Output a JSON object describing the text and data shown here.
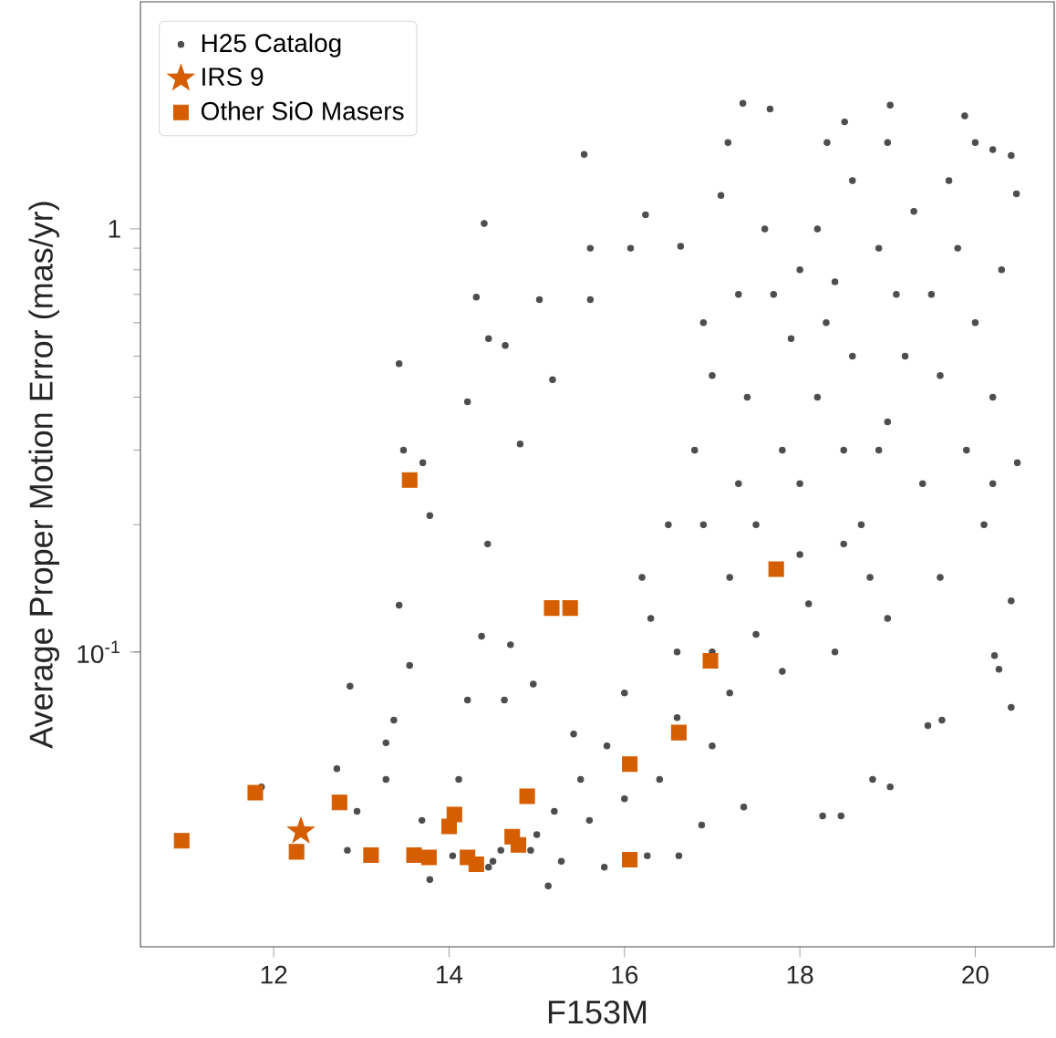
{
  "chart_data": {
    "type": "scatter",
    "xlabel": "F153M",
    "ylabel": "Average Proper Motion Error (mas/yr)",
    "log": "y",
    "grid": false,
    "legend": "top left",
    "xlim": [
      10.48,
      20.9
    ],
    "ylim": [
      0.0201,
      3.44
    ],
    "xticks": [
      12,
      14,
      16,
      18,
      20
    ],
    "yticks": [
      {
        "value": 0.1,
        "label": "10$^{-1}$"
      },
      {
        "value": 1,
        "label": "1"
      }
    ],
    "series": [
      {
        "name": "H25 Catalog",
        "color": "#4d4d4d",
        "marker": "circle",
        "x": [
          17.35,
          17.66,
          19.03,
          19.88,
          18.51,
          17.18,
          18.31,
          19.0,
          15.54,
          14.4,
          16.24,
          15.61,
          16.07,
          16.64,
          14.31,
          15.03,
          15.61,
          13.43,
          14.45,
          14.64,
          14.21,
          15.18,
          14.81,
          13.48,
          13.7,
          13.78,
          14.44,
          13.43,
          13.55,
          12.87,
          13.37,
          13.28,
          12.72,
          13.28,
          12.84,
          12.95,
          11.86,
          13.78,
          15.13,
          14.37,
          14.7,
          14.21,
          14.63,
          14.96,
          15.42,
          15.77,
          15.28,
          14.59,
          14.04,
          13.69,
          14.11,
          16.26,
          16.62,
          16.88,
          17.36,
          18.26,
          18.47,
          19.03,
          18.83,
          19.46,
          19.62,
          20.41,
          20.22,
          20.27,
          20.41,
          20.48,
          20.47,
          20.41,
          20.2,
          17.0,
          17.2,
          17.5,
          17.8,
          18.0,
          18.2,
          18.5,
          18.7,
          19.0,
          19.2,
          19.5,
          19.8,
          20.0,
          20.2,
          20.3,
          18.3,
          18.0,
          17.6,
          17.3,
          17.0,
          16.8,
          16.5,
          16.3,
          16.0,
          15.8,
          15.5,
          15.2,
          15.0,
          14.93,
          14.5,
          14.45,
          16.6,
          17.2,
          17.8,
          18.4,
          19.0,
          19.6,
          20.1,
          18.8,
          18.1,
          17.5,
          17.0,
          16.4,
          16.0,
          15.6,
          18.6,
          19.3,
          19.7,
          18.9,
          18.4,
          17.9,
          17.4,
          16.9,
          16.2,
          19.4,
          19.9,
          20.2,
          18.6,
          19.1,
          17.7,
          18.2,
          17.1,
          16.9,
          20.0,
          19.6,
          18.9,
          18.5,
          18.0,
          17.3,
          16.6
        ],
        "values": [
          1.98,
          1.92,
          1.96,
          1.85,
          1.79,
          1.6,
          1.6,
          1.6,
          1.5,
          1.03,
          1.08,
          0.9,
          0.9,
          0.91,
          0.69,
          0.68,
          0.68,
          0.48,
          0.55,
          0.53,
          0.39,
          0.44,
          0.31,
          0.3,
          0.28,
          0.21,
          0.18,
          0.129,
          0.093,
          0.083,
          0.069,
          0.061,
          0.053,
          0.05,
          0.034,
          0.042,
          0.048,
          0.029,
          0.028,
          0.109,
          0.104,
          0.077,
          0.077,
          0.084,
          0.064,
          0.031,
          0.032,
          0.034,
          0.033,
          0.04,
          0.05,
          0.033,
          0.033,
          0.039,
          0.043,
          0.041,
          0.041,
          0.048,
          0.05,
          0.067,
          0.069,
          0.074,
          0.098,
          0.091,
          0.132,
          0.28,
          1.21,
          1.49,
          1.54,
          0.1,
          0.15,
          0.2,
          0.3,
          0.25,
          0.4,
          0.3,
          0.2,
          0.35,
          0.5,
          0.7,
          0.9,
          0.6,
          0.4,
          0.8,
          0.6,
          0.8,
          1.0,
          0.7,
          0.45,
          0.3,
          0.2,
          0.12,
          0.08,
          0.06,
          0.05,
          0.042,
          0.037,
          0.034,
          0.032,
          0.031,
          0.07,
          0.08,
          0.09,
          0.1,
          0.12,
          0.15,
          0.2,
          0.15,
          0.13,
          0.11,
          0.06,
          0.05,
          0.045,
          0.04,
          1.3,
          1.1,
          1.3,
          0.9,
          0.75,
          0.55,
          0.4,
          0.2,
          0.15,
          0.25,
          0.3,
          0.25,
          0.5,
          0.7,
          0.7,
          1.0,
          1.2,
          0.6,
          1.6,
          0.45,
          0.3,
          0.18,
          0.17,
          0.25,
          0.1
        ]
      },
      {
        "name": "IRS 9",
        "color": "#d55e00",
        "marker": "star",
        "x": [
          12.31
        ],
        "values": [
          0.0377
        ]
      },
      {
        "name": "Other SiO Masers",
        "color": "#d55e00",
        "marker": "square",
        "x": [
          10.95,
          11.79,
          12.26,
          12.75,
          13.11,
          13.55,
          13.6,
          13.77,
          14.0,
          14.06,
          14.21,
          14.31,
          14.72,
          14.79,
          14.89,
          15.17,
          15.38,
          16.06,
          16.06,
          16.62,
          16.98,
          17.73
        ],
        "values": [
          0.0358,
          0.0465,
          0.0337,
          0.0441,
          0.0331,
          0.255,
          0.0331,
          0.0327,
          0.0387,
          0.0413,
          0.0327,
          0.0315,
          0.0366,
          0.035,
          0.0456,
          0.127,
          0.127,
          0.0543,
          0.0323,
          0.0645,
          0.0953,
          0.157
        ]
      }
    ]
  }
}
